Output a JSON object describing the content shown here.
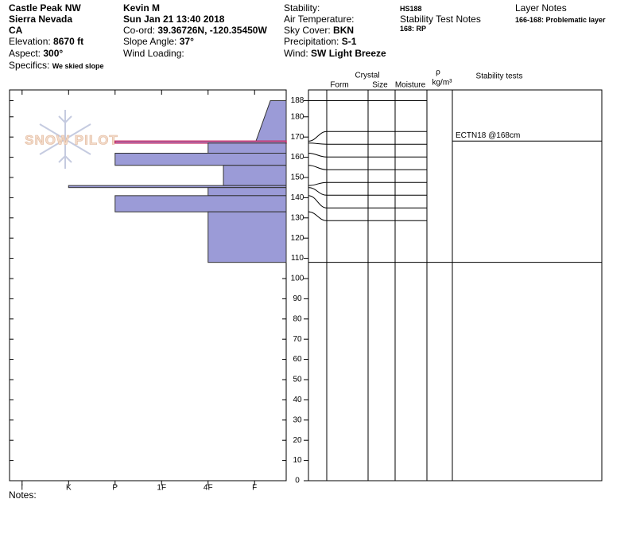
{
  "header": {
    "location": {
      "slope": "Castle Peak NW",
      "range": "Sierra Nevada",
      "state": "CA",
      "elevation_label": "Elevation:",
      "elevation": "8670 ft",
      "aspect_label": "Aspect:",
      "aspect": "300°",
      "specifics_label": "Specifics:",
      "specifics": "We skied slope"
    },
    "observation": {
      "observer": "Kevin M",
      "date": "Sun Jan 21 13:40 2018",
      "coord_label": "Co-ord:",
      "coord": "39.36726N, -120.35450W",
      "slope_angle_label": "Slope Angle:",
      "slope_angle": "37°",
      "wind_loading_label": "Wind Loading:"
    },
    "conditions": {
      "stability_label": "Stability:",
      "air_temp_label": "Air Temperature:",
      "sky_label": "Sky Cover:",
      "sky": "BKN",
      "precip_label": "Precipitation:",
      "precip": "S-1",
      "wind_label": "Wind:",
      "wind": "SW Light Breeze"
    },
    "stability_notes": {
      "hs": "HS188",
      "title": "Stability Test Notes",
      "note": "168: RP"
    },
    "layer_notes": {
      "title": "Layer Notes",
      "note": "166-168: Problematic layer"
    }
  },
  "watermark": "SNOW PILOT",
  "notes_label": "Notes:",
  "chart_data": {
    "type": "snow-profile",
    "columns": {
      "crystal": "Crystal",
      "form": "Form",
      "size": "Size",
      "moisture": "Moisture",
      "rho": "ρ",
      "density_unit": "kg/m³",
      "stability": "Stability tests"
    },
    "xlim": [
      -0.27,
      5.68
    ],
    "xticks": [
      {
        "value": 0,
        "label": "I"
      },
      {
        "value": 1,
        "label": "K"
      },
      {
        "value": 2,
        "label": "P"
      },
      {
        "value": 3,
        "label": "1F"
      },
      {
        "value": 4,
        "label": "4F"
      },
      {
        "value": 5,
        "label": "F"
      }
    ],
    "ylim": [
      0,
      193.3
    ],
    "yticks": [
      0,
      10,
      20,
      30,
      40,
      50,
      60,
      70,
      80,
      90,
      100,
      110,
      120,
      130,
      140,
      150,
      160,
      170,
      180,
      188
    ],
    "fill": "#9b9bd7",
    "layers": [
      {
        "top": 188,
        "bottom": 168,
        "hardness": 5.03,
        "hardness_top": 5.34
      },
      {
        "top": 168,
        "bottom": 167,
        "hardness": 2,
        "color": "#c8306a"
      },
      {
        "top": 167,
        "bottom": 162,
        "hardness": 4
      },
      {
        "top": 162,
        "bottom": 156,
        "hardness": 2
      },
      {
        "top": 156,
        "bottom": 146,
        "hardness": 4.33
      },
      {
        "top": 146,
        "bottom": 145,
        "hardness": 1
      },
      {
        "top": 145,
        "bottom": 141,
        "hardness": 4
      },
      {
        "top": 141,
        "bottom": 133,
        "hardness": 2
      },
      {
        "top": 133,
        "bottom": 108,
        "hardness": 4
      }
    ],
    "stability_tests": [
      {
        "label": "ECTN18 @168cm",
        "height": 168
      }
    ]
  }
}
